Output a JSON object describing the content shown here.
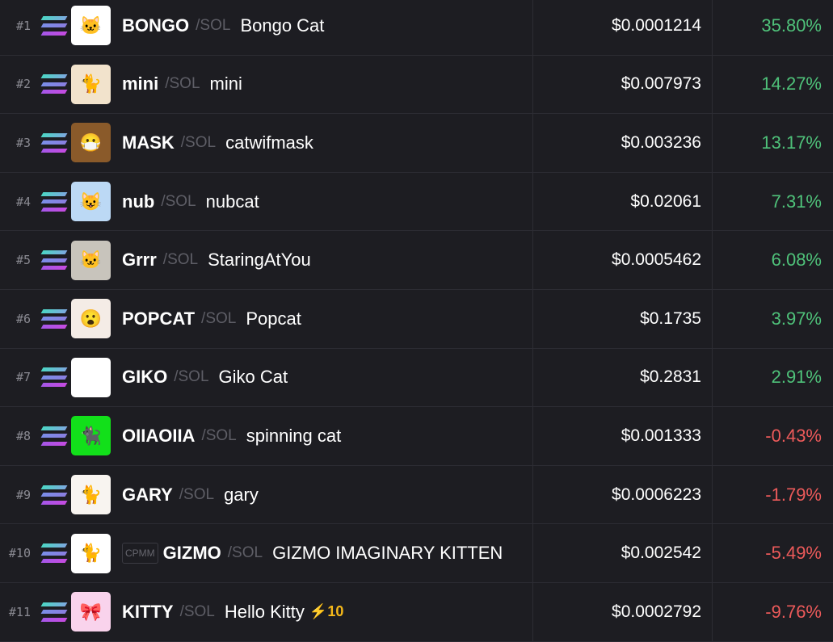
{
  "colors": {
    "up": "#4fc27a",
    "down": "#ec5a5a",
    "background": "#1d1d22"
  },
  "chain_icon": "solana-icon",
  "rows": [
    {
      "rank": "#1",
      "symbol": "BONGO",
      "quote": "/SOL",
      "name": "Bongo Cat",
      "price": "$0.0001214",
      "change": "35.80%",
      "dir": "up",
      "img": "#ffffff",
      "glyph": "🐱"
    },
    {
      "rank": "#2",
      "symbol": "mini",
      "quote": "/SOL",
      "name": "mini",
      "price": "$0.007973",
      "change": "14.27%",
      "dir": "up",
      "img": "#f2e3cc",
      "glyph": "🐈"
    },
    {
      "rank": "#3",
      "symbol": "MASK",
      "quote": "/SOL",
      "name": "catwifmask",
      "price": "$0.003236",
      "change": "13.17%",
      "dir": "up",
      "img": "#8a5a2a",
      "glyph": "😷"
    },
    {
      "rank": "#4",
      "symbol": "nub",
      "quote": "/SOL",
      "name": "nubcat",
      "price": "$0.02061",
      "change": "7.31%",
      "dir": "up",
      "img": "#bcd9f5",
      "glyph": "😺"
    },
    {
      "rank": "#5",
      "symbol": "Grrr",
      "quote": "/SOL",
      "name": "StaringAtYou",
      "price": "$0.0005462",
      "change": "6.08%",
      "dir": "up",
      "img": "#c8c4bc",
      "glyph": "🐱"
    },
    {
      "rank": "#6",
      "symbol": "POPCAT",
      "quote": "/SOL",
      "name": "Popcat",
      "price": "$0.1735",
      "change": "3.97%",
      "dir": "up",
      "img": "#f4ece6",
      "glyph": "😮"
    },
    {
      "rank": "#7",
      "symbol": "GIKO",
      "quote": "/SOL",
      "name": "Giko Cat",
      "price": "$0.2831",
      "change": "2.91%",
      "dir": "up",
      "img": "#ffffff",
      "glyph": "°□°"
    },
    {
      "rank": "#8",
      "symbol": "OIIAOIIA",
      "quote": "/SOL",
      "name": "spinning cat",
      "price": "$0.001333",
      "change": "-0.43%",
      "dir": "down",
      "img": "#12e01a",
      "glyph": "🐈‍⬛"
    },
    {
      "rank": "#9",
      "symbol": "GARY",
      "quote": "/SOL",
      "name": "gary",
      "price": "$0.0006223",
      "change": "-1.79%",
      "dir": "down",
      "img": "#f8f4f0",
      "glyph": "🐈"
    },
    {
      "rank": "#10",
      "badge": "CPMM",
      "symbol": "GIZMO",
      "quote": "/SOL",
      "name": "GIZMO IMAGINARY KITTEN",
      "price": "$0.002542",
      "change": "-5.49%",
      "dir": "down",
      "img": "#ffffff",
      "glyph": "🐈"
    },
    {
      "rank": "#11",
      "symbol": "KITTY",
      "quote": "/SOL",
      "name": "Hello Kitty",
      "boost": "⚡10",
      "price": "$0.0002792",
      "change": "-9.76%",
      "dir": "down",
      "img": "#f9d3ec",
      "glyph": "🎀"
    }
  ]
}
